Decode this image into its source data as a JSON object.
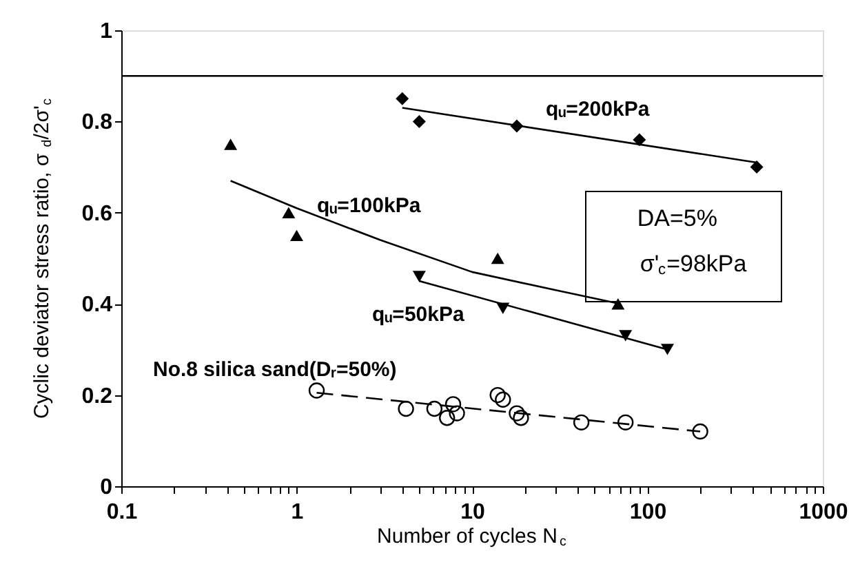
{
  "chart_data": {
    "type": "scatter",
    "xlabel": "Number of cycles N$_{c}$",
    "ylabel": "Cyclic deviator stress ratio, σ$_{d}$/2σ'$_{c}$",
    "log": "x",
    "xlim": [
      0.1,
      1000
    ],
    "ylim": [
      0,
      1
    ],
    "grid": false,
    "xticks": [
      0.1,
      {
        "value": 0.2,
        "label": null
      },
      {
        "value": 0.3,
        "label": null
      },
      {
        "value": 0.4,
        "label": null
      },
      {
        "value": 0.5,
        "label": null
      },
      {
        "value": 0.6,
        "label": null
      },
      {
        "value": 0.7,
        "label": null
      },
      {
        "value": 0.8,
        "label": null
      },
      {
        "value": 0.9,
        "label": null
      },
      1,
      {
        "value": 2,
        "label": null
      },
      {
        "value": 3,
        "label": null
      },
      {
        "value": 4,
        "label": null
      },
      {
        "value": 5,
        "label": null
      },
      {
        "value": 6,
        "label": null
      },
      {
        "value": 7,
        "label": null
      },
      {
        "value": 8,
        "label": null
      },
      {
        "value": 9,
        "label": null
      },
      10,
      {
        "value": 20,
        "label": null
      },
      {
        "value": 30,
        "label": null
      },
      {
        "value": 40,
        "label": null
      },
      {
        "value": 50,
        "label": null
      },
      {
        "value": 60,
        "label": null
      },
      {
        "value": 70,
        "label": null
      },
      {
        "value": 80,
        "label": null
      },
      {
        "value": 90,
        "label": null
      },
      100,
      {
        "value": 200,
        "label": null
      },
      {
        "value": 300,
        "label": null
      },
      {
        "value": 400,
        "label": null
      },
      {
        "value": 500,
        "label": null
      },
      {
        "value": 600,
        "label": null
      },
      {
        "value": 700,
        "label": null
      },
      {
        "value": 800,
        "label": null
      },
      {
        "value": 900,
        "label": null
      },
      1000
    ],
    "yticks": [
      0,
      0.2,
      0.4,
      0.6,
      0.8,
      1
    ],
    "ref_lines": [
      {
        "axis": "y",
        "value": 0.9,
        "color": "#000000"
      }
    ],
    "series": [
      {
        "type": "scatter",
        "name": "qᵤ=200kPa",
        "marker": "diamond",
        "color": "#000000",
        "x": [
          4,
          5,
          18,
          90,
          420
        ],
        "values": [
          0.85,
          0.8,
          0.79,
          0.76,
          0.7
        ]
      },
      {
        "type": "line",
        "marker": "none",
        "line_style": "solid",
        "color": "#000000",
        "x": [
          4,
          420
        ],
        "values": [
          0.83,
          0.71
        ]
      },
      {
        "type": "scatter",
        "name": "qᵤ=100kPa",
        "marker": "triangle",
        "color": "#000000",
        "x": [
          0.42,
          0.9,
          1.0,
          14,
          68
        ],
        "values": [
          0.75,
          0.6,
          0.55,
          0.5,
          0.4
        ]
      },
      {
        "type": "line",
        "marker": "none",
        "line_style": "solid",
        "color": "#000000",
        "x": [
          0.42,
          1,
          3,
          10,
          30,
          70
        ],
        "values": [
          0.67,
          0.61,
          0.54,
          0.47,
          0.43,
          0.4
        ]
      },
      {
        "type": "scatter",
        "name": "qᵤ=50kPa",
        "marker": "triangle-down",
        "color": "#000000",
        "x": [
          5,
          15,
          75,
          130
        ],
        "values": [
          0.46,
          0.39,
          0.33,
          0.3
        ]
      },
      {
        "type": "line",
        "marker": "none",
        "line_style": "solid",
        "color": "#000000",
        "x": [
          5,
          130
        ],
        "values": [
          0.45,
          0.3
        ]
      },
      {
        "type": "scatter",
        "name": "No.8 silica sand(Dᵣ=50%)",
        "marker": "circle",
        "color": "#000000",
        "x": [
          1.3,
          4.2,
          6.1,
          7.2,
          7.8,
          8.2,
          14,
          15,
          18,
          19,
          42,
          75,
          200
        ],
        "values": [
          0.21,
          0.17,
          0.17,
          0.15,
          0.18,
          0.16,
          0.2,
          0.19,
          0.16,
          0.15,
          0.14,
          0.14,
          0.12
        ]
      },
      {
        "type": "line",
        "marker": "none",
        "line_style": "dashed",
        "color": "#000000",
        "x": [
          1.3,
          200
        ],
        "values": [
          0.205,
          0.12
        ]
      }
    ],
    "annotations": [
      "DA=5%",
      "σ'$_{c}$=98kPa"
    ]
  }
}
